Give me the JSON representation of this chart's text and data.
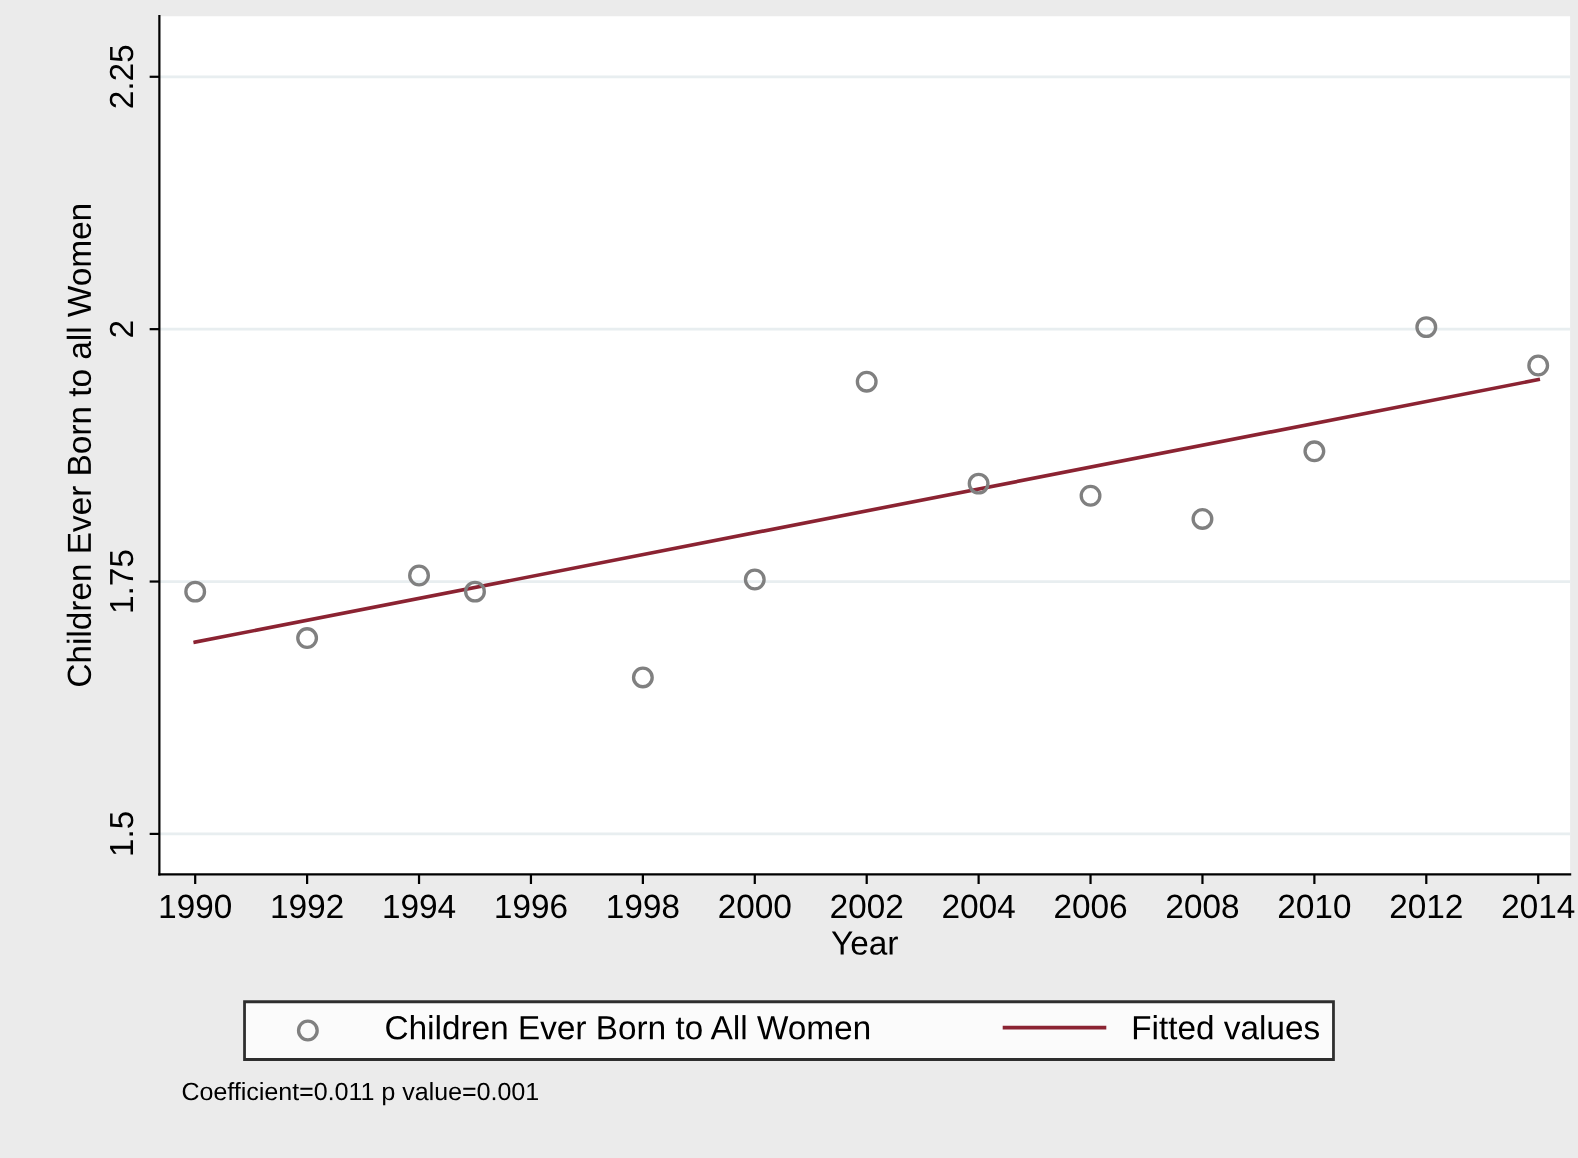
{
  "chart_data": {
    "type": "scatter",
    "xlabel": "Year",
    "ylabel": "Children Ever Born to all Women",
    "xlim": [
      1989.36,
      2014.57
    ],
    "xticks": [
      1990,
      1992,
      1994,
      1996,
      1998,
      2000,
      2002,
      2004,
      2006,
      2008,
      2010,
      2012,
      2014
    ],
    "ylim": [
      1.46,
      2.31
    ],
    "yticks": [
      1.5,
      1.75,
      2,
      2.25
    ],
    "grid": "y",
    "legend": "bottom",
    "series": [
      {
        "name": "Children Ever Born to All Women",
        "marker": "circle",
        "color": "#808080",
        "x": [
          1990,
          1992,
          1994,
          1995,
          1998,
          2000,
          2002,
          2004,
          2006,
          2008,
          2010,
          2012,
          2014
        ],
        "values": [
          1.74,
          1.694,
          1.756,
          1.74,
          1.655,
          1.752,
          1.948,
          1.847,
          1.835,
          1.812,
          1.879,
          2.002,
          1.964
        ]
      },
      {
        "name": "Fitted values",
        "type": "line",
        "color": "#8b2332",
        "x": [
          1990,
          2014
        ],
        "values": [
          1.69,
          1.95
        ]
      }
    ],
    "annotations": [
      "Coefficient=0.011 p value=0.001"
    ]
  }
}
